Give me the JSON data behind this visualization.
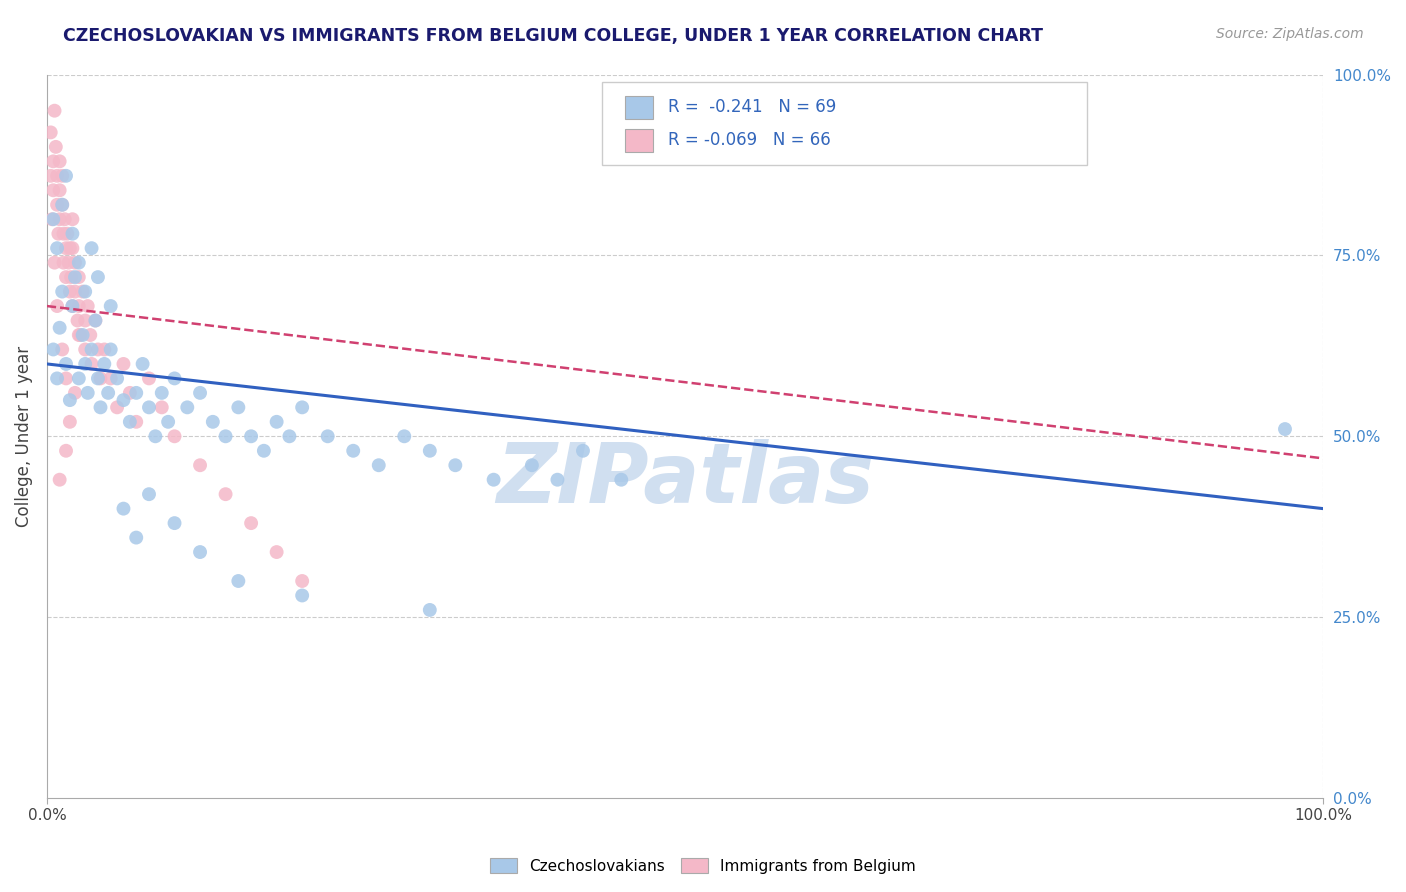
{
  "title": "CZECHOSLOVAKIAN VS IMMIGRANTS FROM BELGIUM COLLEGE, UNDER 1 YEAR CORRELATION CHART",
  "source_text": "Source: ZipAtlas.com",
  "ylabel": "College, Under 1 year",
  "xlim": [
    0.0,
    1.0
  ],
  "ylim": [
    0.0,
    1.0
  ],
  "legend_label1": "Czechoslovakians",
  "legend_label2": "Immigrants from Belgium",
  "R1": -0.241,
  "N1": 69,
  "R2": -0.069,
  "N2": 66,
  "blue_color": "#a8c8e8",
  "pink_color": "#f4b8c8",
  "blue_line_color": "#3060c0",
  "pink_line_color": "#d04070",
  "title_color": "#1a1a6e",
  "source_color": "#999999",
  "watermark_text": "ZIPatlas",
  "watermark_color": "#d0dff0",
  "blue_line_x0": 0.0,
  "blue_line_y0": 0.6,
  "blue_line_x1": 1.0,
  "blue_line_y1": 0.4,
  "pink_line_x0": 0.0,
  "pink_line_y0": 0.68,
  "pink_line_x1": 0.38,
  "pink_line_y1": 0.6,
  "blue_dots_x": [
    0.005,
    0.008,
    0.01,
    0.012,
    0.015,
    0.018,
    0.02,
    0.022,
    0.025,
    0.028,
    0.03,
    0.032,
    0.035,
    0.038,
    0.04,
    0.042,
    0.045,
    0.048,
    0.05,
    0.055,
    0.06,
    0.065,
    0.07,
    0.075,
    0.08,
    0.085,
    0.09,
    0.095,
    0.1,
    0.11,
    0.12,
    0.13,
    0.14,
    0.15,
    0.16,
    0.17,
    0.18,
    0.19,
    0.2,
    0.22,
    0.24,
    0.26,
    0.28,
    0.3,
    0.32,
    0.35,
    0.38,
    0.4,
    0.42,
    0.45,
    0.005,
    0.008,
    0.012,
    0.015,
    0.02,
    0.025,
    0.03,
    0.035,
    0.04,
    0.05,
    0.06,
    0.07,
    0.08,
    0.1,
    0.12,
    0.15,
    0.2,
    0.3,
    0.97
  ],
  "blue_dots_y": [
    0.62,
    0.58,
    0.65,
    0.7,
    0.6,
    0.55,
    0.68,
    0.72,
    0.58,
    0.64,
    0.6,
    0.56,
    0.62,
    0.66,
    0.58,
    0.54,
    0.6,
    0.56,
    0.62,
    0.58,
    0.55,
    0.52,
    0.56,
    0.6,
    0.54,
    0.5,
    0.56,
    0.52,
    0.58,
    0.54,
    0.56,
    0.52,
    0.5,
    0.54,
    0.5,
    0.48,
    0.52,
    0.5,
    0.54,
    0.5,
    0.48,
    0.46,
    0.5,
    0.48,
    0.46,
    0.44,
    0.46,
    0.44,
    0.48,
    0.44,
    0.8,
    0.76,
    0.82,
    0.86,
    0.78,
    0.74,
    0.7,
    0.76,
    0.72,
    0.68,
    0.4,
    0.36,
    0.42,
    0.38,
    0.34,
    0.3,
    0.28,
    0.26,
    0.51
  ],
  "pink_dots_x": [
    0.003,
    0.005,
    0.005,
    0.006,
    0.007,
    0.008,
    0.008,
    0.009,
    0.01,
    0.01,
    0.01,
    0.012,
    0.012,
    0.013,
    0.013,
    0.014,
    0.015,
    0.015,
    0.016,
    0.017,
    0.018,
    0.018,
    0.019,
    0.02,
    0.02,
    0.02,
    0.022,
    0.022,
    0.024,
    0.025,
    0.025,
    0.026,
    0.028,
    0.03,
    0.03,
    0.032,
    0.034,
    0.035,
    0.038,
    0.04,
    0.042,
    0.045,
    0.05,
    0.055,
    0.06,
    0.065,
    0.07,
    0.08,
    0.09,
    0.1,
    0.12,
    0.14,
    0.16,
    0.18,
    0.2,
    0.025,
    0.015,
    0.012,
    0.008,
    0.006,
    0.004,
    0.003,
    0.022,
    0.018,
    0.015,
    0.01
  ],
  "pink_dots_y": [
    0.92,
    0.88,
    0.84,
    0.95,
    0.9,
    0.86,
    0.82,
    0.78,
    0.88,
    0.84,
    0.8,
    0.86,
    0.82,
    0.78,
    0.74,
    0.8,
    0.76,
    0.72,
    0.78,
    0.74,
    0.7,
    0.76,
    0.72,
    0.8,
    0.76,
    0.68,
    0.74,
    0.7,
    0.66,
    0.72,
    0.68,
    0.64,
    0.7,
    0.66,
    0.62,
    0.68,
    0.64,
    0.6,
    0.66,
    0.62,
    0.58,
    0.62,
    0.58,
    0.54,
    0.6,
    0.56,
    0.52,
    0.58,
    0.54,
    0.5,
    0.46,
    0.42,
    0.38,
    0.34,
    0.3,
    0.64,
    0.58,
    0.62,
    0.68,
    0.74,
    0.8,
    0.86,
    0.56,
    0.52,
    0.48,
    0.44
  ]
}
